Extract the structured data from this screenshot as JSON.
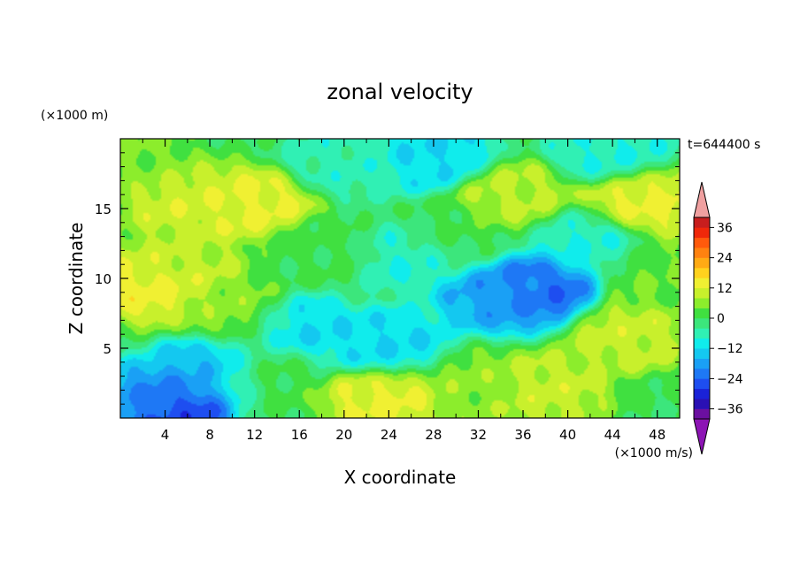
{
  "chart_data": {
    "type": "heatmap",
    "title": "zonal velocity",
    "xlabel": "X coordinate",
    "ylabel": "Z coordinate",
    "y_unit": "(×1000 m)",
    "x_unit": "(×1000 m/s)",
    "time_label": "t=644400 s",
    "xlim": [
      0,
      50
    ],
    "ylim": [
      0,
      20
    ],
    "x_ticks": [
      "4",
      "8",
      "12",
      "16",
      "20",
      "24",
      "28",
      "32",
      "36",
      "40",
      "44",
      "48"
    ],
    "y_ticks": [
      "5",
      "10",
      "15"
    ],
    "colorbar": {
      "ticks": [
        "36",
        "24",
        "12",
        "0",
        "-12",
        "-24",
        "-36"
      ],
      "levels": [
        -40,
        -36,
        -32,
        -28,
        -24,
        -20,
        -16,
        -12,
        -8,
        -4,
        0,
        4,
        8,
        12,
        16,
        20,
        24,
        28,
        32,
        36,
        40
      ],
      "colors": [
        "#6b0fa0",
        "#2a10b4",
        "#1a22d8",
        "#1e4ef0",
        "#1e78f5",
        "#1aa0f5",
        "#14c8f0",
        "#10ecec",
        "#30f0b4",
        "#3ce67c",
        "#40e040",
        "#8ced2c",
        "#c8f02c",
        "#f0f032",
        "#ffd21e",
        "#ffaa14",
        "#ff8210",
        "#ff5a0c",
        "#f0280a",
        "#c81e1e"
      ],
      "under_color": "#8c14b4",
      "over_color": "#f0a0a0"
    },
    "features": [
      {
        "x": 37.5,
        "z": 9.3,
        "value": -24
      },
      {
        "x": 34.0,
        "z": 8.8,
        "value": -18
      },
      {
        "x": 4.0,
        "z": 0.8,
        "value": -30
      },
      {
        "x": 2.5,
        "z": 1.3,
        "value": -16
      },
      {
        "x": 8.5,
        "z": 3.5,
        "value": -16
      },
      {
        "x": 24.0,
        "z": 5.2,
        "value": -12
      },
      {
        "x": 16.0,
        "z": 6.2,
        "value": -12
      },
      {
        "x": 26.0,
        "z": 11.5,
        "value": -8
      },
      {
        "x": 41.5,
        "z": 12.5,
        "value": -8
      },
      {
        "x": 28.0,
        "z": 18.8,
        "value": -12
      },
      {
        "x": 20.0,
        "z": 18.3,
        "value": -6
      },
      {
        "x": 44.0,
        "z": 19.2,
        "value": -8
      },
      {
        "x": 3.0,
        "z": 9.5,
        "value": 14
      },
      {
        "x": 5.5,
        "z": 11.0,
        "value": 9
      },
      {
        "x": 12.0,
        "z": 15.3,
        "value": 13
      },
      {
        "x": 6.0,
        "z": 15.5,
        "value": 11
      },
      {
        "x": 47.0,
        "z": 15.5,
        "value": 13
      },
      {
        "x": 35.0,
        "z": 15.8,
        "value": 9
      },
      {
        "x": 24.0,
        "z": 1.5,
        "value": 13
      },
      {
        "x": 38.0,
        "z": 2.0,
        "value": 10
      },
      {
        "x": 45.5,
        "z": 6.0,
        "value": 10
      },
      {
        "x": 31.5,
        "z": 2.2,
        "value": 6
      },
      {
        "x": 18.0,
        "z": 12.0,
        "value": 1
      },
      {
        "x": 30.0,
        "z": 13.0,
        "value": 1
      },
      {
        "x": 13.0,
        "z": 3.5,
        "value": 2
      },
      {
        "x": 1.5,
        "z": 18.5,
        "value": 5
      },
      {
        "x": 10.0,
        "z": 7.5,
        "value": 6
      },
      {
        "x": 48.0,
        "z": 10.0,
        "value": 4
      }
    ]
  }
}
